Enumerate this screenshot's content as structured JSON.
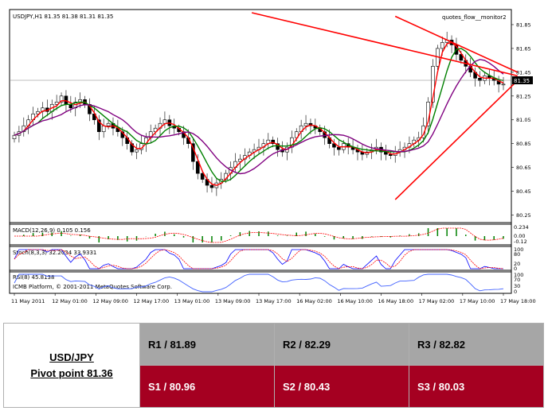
{
  "chart_data": [
    {
      "type": "candlestick",
      "title": "USDJPY,H1  81.35 81.38 81.31 81.35",
      "indicator_label": "quotes_flow__monitor2",
      "last_price_label": "81.35",
      "ylim": [
        80.2,
        81.95
      ],
      "y_ticks": [
        "81.85",
        "81.65",
        "81.45",
        "81.25",
        "81.05",
        "80.85",
        "80.65",
        "80.45",
        "80.25"
      ],
      "x_ticks": [
        "11 May 2011",
        "12 May 01:00",
        "12 May 09:00",
        "12 May 17:00",
        "13 May 01:00",
        "13 May 09:00",
        "13 May 17:00",
        "16 May 02:00",
        "16 May 10:00",
        "16 May 18:00",
        "17 May 02:00",
        "17 May 10:00",
        "17 May 18:00"
      ],
      "close_series": [
        80.92,
        80.95,
        81.0,
        81.05,
        81.1,
        81.12,
        81.15,
        81.12,
        81.18,
        81.2,
        81.25,
        81.18,
        81.15,
        81.2,
        81.22,
        81.18,
        81.1,
        81.05,
        80.95,
        81.0,
        81.02,
        80.98,
        80.95,
        80.9,
        80.85,
        80.78,
        80.8,
        80.85,
        80.9,
        80.95,
        80.98,
        81.02,
        81.05,
        81.0,
        80.98,
        80.95,
        80.9,
        80.85,
        80.7,
        80.6,
        80.55,
        80.5,
        80.48,
        80.52,
        80.55,
        80.6,
        80.65,
        80.7,
        80.72,
        80.75,
        80.78,
        80.8,
        80.82,
        80.85,
        80.88,
        80.85,
        80.8,
        80.78,
        80.82,
        80.9,
        80.95,
        81.0,
        81.02,
        81.0,
        80.98,
        80.95,
        80.9,
        80.85,
        80.82,
        80.8,
        80.85,
        80.82,
        80.8,
        80.78,
        80.76,
        80.78,
        80.8,
        80.82,
        80.78,
        80.76,
        80.75,
        80.78,
        80.8,
        80.82,
        80.85,
        80.88,
        80.9,
        81.0,
        81.2,
        81.5,
        81.65,
        81.7,
        81.72,
        81.68,
        81.6,
        81.55,
        81.5,
        81.45,
        81.4,
        81.38,
        81.42,
        81.4,
        81.38,
        81.35,
        81.35
      ],
      "lines": [
        {
          "from": [
            50.5,
            81.95
          ],
          "to": [
            107,
            81.42
          ],
          "color": "#ff0000"
        },
        {
          "from": [
            81,
            80.38
          ],
          "to": [
            107,
            81.38
          ],
          "color": "#ff0000"
        }
      ],
      "ma_colors": {
        "fast": "#ff0000",
        "mid": "#008000",
        "slow": "#800080"
      }
    },
    {
      "type": "bar",
      "label": "MACD(12,26,9) 0.105 0.156",
      "y_ticks": [
        "0.234",
        "0.00",
        "-0.12"
      ]
    },
    {
      "type": "line",
      "label": "Stoch(8,3,3) 32.2034 33.9331",
      "y_ticks": [
        "100",
        "80",
        "20",
        "0"
      ]
    },
    {
      "type": "line",
      "label": "RSI(8) 45.8138",
      "watermark": "ICMB Platform, © 2001-2011 MetaQuotes Software Corp.",
      "y_ticks": [
        "100",
        "70",
        "30",
        "0"
      ]
    }
  ],
  "pivot": {
    "pair": "USD/JPY",
    "pivot_text": "Pivot point 81.36",
    "resistances": [
      "R1 / 81.89",
      "R2 / 82.29",
      "R3 / 82.82"
    ],
    "supports": [
      "S1 / 80.96",
      "S2 / 80.43",
      "S3 / 80.03"
    ]
  }
}
